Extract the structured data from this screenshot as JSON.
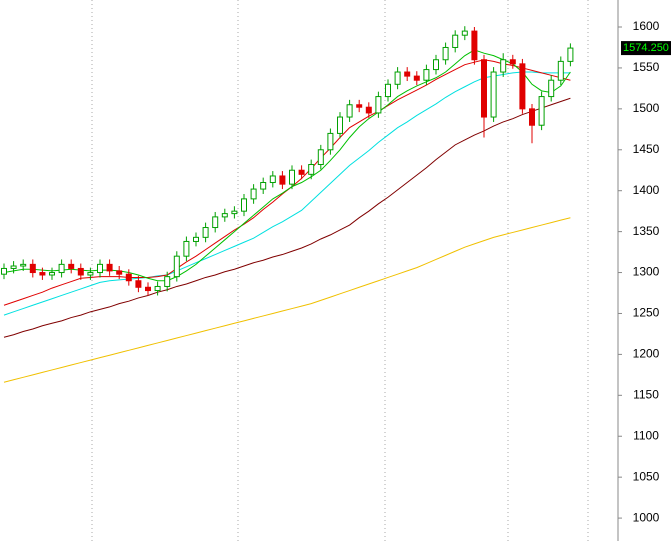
{
  "chart_data": {
    "type": "candlestick",
    "ylim": [
      972,
      1633
    ],
    "yticks": [
      1000,
      1050,
      1100,
      1150,
      1200,
      1250,
      1300,
      1350,
      1400,
      1450,
      1500,
      1550,
      1600
    ],
    "up_color": "#00a000",
    "down_color": "#e00000",
    "open": [
      1298,
      1305,
      1308,
      1310,
      1300,
      1297,
      1300,
      1310,
      1305,
      1297,
      1300,
      1310,
      1302,
      1298,
      1290,
      1282,
      1278,
      1283,
      1295,
      1320,
      1338,
      1343,
      1355,
      1368,
      1372,
      1375,
      1390,
      1402,
      1410,
      1418,
      1408,
      1425,
      1420,
      1432,
      1450,
      1470,
      1490,
      1505,
      1502,
      1495,
      1515,
      1530,
      1545,
      1540,
      1535,
      1548,
      1560,
      1575,
      1590,
      1595,
      1560,
      1490,
      1545,
      1560,
      1555,
      1500,
      1480,
      1515,
      1535,
      1558
    ],
    "high": [
      1311,
      1314,
      1316,
      1316,
      1306,
      1306,
      1316,
      1316,
      1311,
      1306,
      1316,
      1316,
      1308,
      1304,
      1296,
      1288,
      1289,
      1301,
      1326,
      1344,
      1349,
      1361,
      1374,
      1378,
      1381,
      1396,
      1408,
      1416,
      1424,
      1424,
      1431,
      1431,
      1438,
      1456,
      1476,
      1496,
      1511,
      1511,
      1508,
      1521,
      1536,
      1551,
      1551,
      1546,
      1554,
      1566,
      1581,
      1596,
      1601,
      1600,
      1566,
      1551,
      1568,
      1566,
      1561,
      1506,
      1521,
      1541,
      1564,
      1580
    ],
    "low": [
      1292,
      1299,
      1302,
      1294,
      1291,
      1291,
      1294,
      1299,
      1291,
      1291,
      1294,
      1296,
      1292,
      1284,
      1276,
      1272,
      1272,
      1277,
      1289,
      1314,
      1332,
      1337,
      1349,
      1362,
      1366,
      1369,
      1384,
      1396,
      1404,
      1402,
      1402,
      1414,
      1414,
      1426,
      1444,
      1464,
      1484,
      1496,
      1489,
      1489,
      1509,
      1524,
      1534,
      1529,
      1529,
      1542,
      1554,
      1569,
      1584,
      1554,
      1465,
      1484,
      1539,
      1549,
      1494,
      1458,
      1474,
      1509,
      1529,
      1552
    ],
    "close": [
      1305,
      1308,
      1310,
      1300,
      1297,
      1300,
      1310,
      1305,
      1297,
      1300,
      1310,
      1302,
      1298,
      1290,
      1282,
      1278,
      1283,
      1295,
      1320,
      1338,
      1343,
      1355,
      1368,
      1372,
      1375,
      1390,
      1402,
      1410,
      1418,
      1408,
      1425,
      1420,
      1432,
      1450,
      1470,
      1490,
      1505,
      1502,
      1495,
      1515,
      1530,
      1545,
      1540,
      1535,
      1548,
      1560,
      1575,
      1590,
      1595,
      1560,
      1490,
      1545,
      1560,
      1555,
      1500,
      1480,
      1515,
      1535,
      1558,
      1574.25
    ],
    "last_close": {
      "value": 1574.25,
      "label": "1574.250"
    },
    "series": [
      {
        "color": "#f0c000",
        "values": [
          1166,
          1169,
          1172,
          1175,
          1178,
          1181,
          1184,
          1187,
          1190,
          1193,
          1196,
          1199,
          1202,
          1205,
          1208,
          1211,
          1214,
          1217,
          1220,
          1223,
          1226,
          1229,
          1232,
          1235,
          1238,
          1241,
          1244,
          1247,
          1250,
          1253,
          1256,
          1259,
          1262,
          1266,
          1270,
          1274,
          1278,
          1282,
          1286,
          1290,
          1294,
          1298,
          1302,
          1306,
          1311,
          1316,
          1321,
          1326,
          1331,
          1335,
          1339,
          1343,
          1346,
          1349,
          1352,
          1355,
          1358,
          1361,
          1364,
          1367
        ]
      },
      {
        "color": "#800000",
        "values": [
          1221,
          1224,
          1228,
          1231,
          1235,
          1238,
          1241,
          1245,
          1248,
          1252,
          1255,
          1258,
          1262,
          1265,
          1269,
          1272,
          1276,
          1279,
          1283,
          1286,
          1290,
          1294,
          1297,
          1301,
          1304,
          1308,
          1312,
          1315,
          1319,
          1322,
          1326,
          1330,
          1335,
          1341,
          1346,
          1352,
          1358,
          1367,
          1375,
          1384,
          1392,
          1401,
          1410,
          1419,
          1428,
          1438,
          1447,
          1456,
          1462,
          1468,
          1473,
          1479,
          1484,
          1488,
          1493,
          1497,
          1501,
          1505,
          1509,
          1513
        ]
      },
      {
        "color": "#00e0e0",
        "values": [
          1248,
          1252,
          1256,
          1260,
          1264,
          1268,
          1272,
          1276,
          1280,
          1284,
          1288,
          1290,
          1291,
          1292,
          1293,
          1294,
          1296,
          1297,
          1302,
          1307,
          1312,
          1317,
          1322,
          1327,
          1332,
          1337,
          1342,
          1349,
          1356,
          1362,
          1369,
          1376,
          1387,
          1398,
          1409,
          1420,
          1431,
          1440,
          1449,
          1459,
          1468,
          1477,
          1484,
          1492,
          1499,
          1506,
          1514,
          1521,
          1527,
          1533,
          1538,
          1540,
          1542,
          1544,
          1545,
          1545,
          1544,
          1544,
          1544,
          1544
        ]
      },
      {
        "color": "#e00000",
        "values": [
          1260,
          1264,
          1268,
          1272,
          1276,
          1281,
          1285,
          1289,
          1293,
          1294,
          1295,
          1295,
          1295,
          1294,
          1294,
          1294,
          1295,
          1297,
          1305,
          1313,
          1320,
          1328,
          1336,
          1344,
          1352,
          1359,
          1367,
          1377,
          1386,
          1396,
          1405,
          1415,
          1427,
          1440,
          1452,
          1465,
          1477,
          1484,
          1491,
          1497,
          1504,
          1511,
          1517,
          1523,
          1529,
          1536,
          1542,
          1548,
          1554,
          1557,
          1560,
          1558,
          1555,
          1553,
          1550,
          1547,
          1544,
          1541,
          1538,
          1535
        ]
      },
      {
        "color": "#00c000",
        "values": [
          1300,
          1302,
          1304,
          1304,
          1303,
          1302,
          1303,
          1304,
          1303,
          1302,
          1303,
          1303,
          1302,
          1300,
          1297,
          1293,
          1290,
          1290,
          1295,
          1302,
          1310,
          1320,
          1330,
          1340,
          1350,
          1360,
          1370,
          1380,
          1390,
          1397,
          1405,
          1410,
          1417,
          1425,
          1437,
          1450,
          1465,
          1478,
          1488,
          1496,
          1505,
          1515,
          1522,
          1528,
          1533,
          1538,
          1545,
          1555,
          1565,
          1572,
          1568,
          1565,
          1560,
          1555,
          1545,
          1530,
          1522,
          1520,
          1528,
          1545
        ]
      }
    ]
  }
}
